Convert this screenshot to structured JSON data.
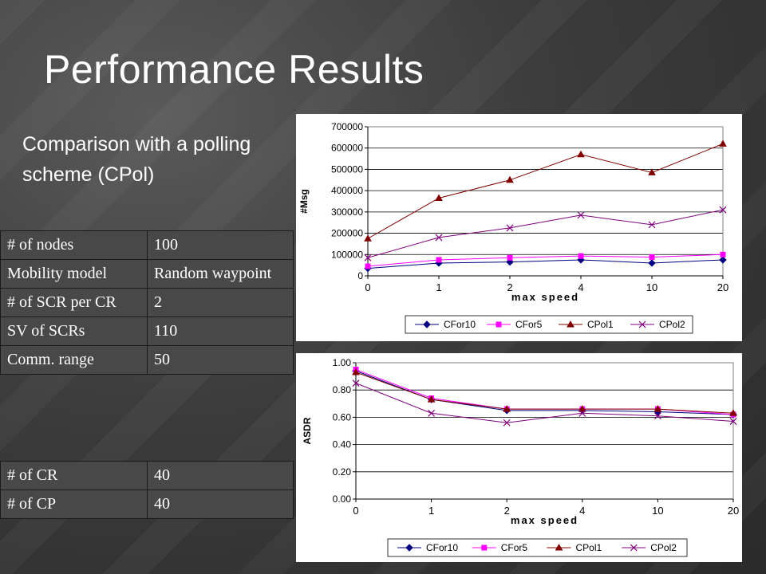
{
  "slide": {
    "title": "Performance Results",
    "subtitle": "Comparison with a polling scheme (CPol)"
  },
  "params_table": [
    {
      "key": "# of nodes",
      "value": "100"
    },
    {
      "key": "Mobility model",
      "value": "Random waypoint"
    },
    {
      "key": "#  of  SCR  per CR",
      "value": "2"
    },
    {
      "key": "SV of SCRs",
      "value": "110"
    },
    {
      "key": "Comm. range",
      "value": "50"
    }
  ],
  "params_table2": [
    {
      "key": "# of CR",
      "value": "40"
    },
    {
      "key": "# of CP",
      "value": "40"
    }
  ],
  "chart_data": [
    {
      "type": "line",
      "xlabel": "max speed",
      "ylabel": "#Msg",
      "categories": [
        "0",
        "1",
        "2",
        "4",
        "10",
        "20"
      ],
      "ylim": [
        0,
        700000
      ],
      "yticks": [
        "0",
        "100000",
        "200000",
        "300000",
        "400000",
        "500000",
        "600000",
        "700000"
      ],
      "grid": true,
      "legend": "bottom",
      "series": [
        {
          "name": "CFor10",
          "color": "#000080",
          "marker": "diamond",
          "values": [
            35000,
            60000,
            65000,
            75000,
            60000,
            75000
          ]
        },
        {
          "name": "CFor5",
          "color": "#ff00ff",
          "marker": "square",
          "values": [
            45000,
            75000,
            85000,
            93000,
            88000,
            100000
          ]
        },
        {
          "name": "CPol1",
          "color": "#800000",
          "marker": "triangle",
          "values": [
            175000,
            365000,
            450000,
            570000,
            485000,
            620000
          ]
        },
        {
          "name": "CPol2",
          "color": "#800080",
          "marker": "x",
          "values": [
            85000,
            180000,
            225000,
            285000,
            240000,
            310000
          ]
        }
      ]
    },
    {
      "type": "line",
      "xlabel": "max speed",
      "ylabel": "ASDR",
      "categories": [
        "0",
        "1",
        "2",
        "4",
        "10",
        "20"
      ],
      "ylim": [
        0,
        1
      ],
      "yticks": [
        "0.00",
        "0.20",
        "0.40",
        "0.60",
        "0.80",
        "1.00"
      ],
      "grid": true,
      "legend": "bottom",
      "series": [
        {
          "name": "CFor10",
          "color": "#000080",
          "marker": "diamond",
          "values": [
            0.94,
            0.73,
            0.65,
            0.65,
            0.64,
            0.62
          ]
        },
        {
          "name": "CFor5",
          "color": "#ff00ff",
          "marker": "square",
          "values": [
            0.95,
            0.74,
            0.66,
            0.66,
            0.66,
            0.62
          ]
        },
        {
          "name": "CPol1",
          "color": "#800000",
          "marker": "triangle",
          "values": [
            0.93,
            0.73,
            0.66,
            0.66,
            0.66,
            0.63
          ]
        },
        {
          "name": "CPol2",
          "color": "#800080",
          "marker": "x",
          "values": [
            0.85,
            0.63,
            0.56,
            0.63,
            0.61,
            0.57
          ]
        }
      ]
    }
  ]
}
